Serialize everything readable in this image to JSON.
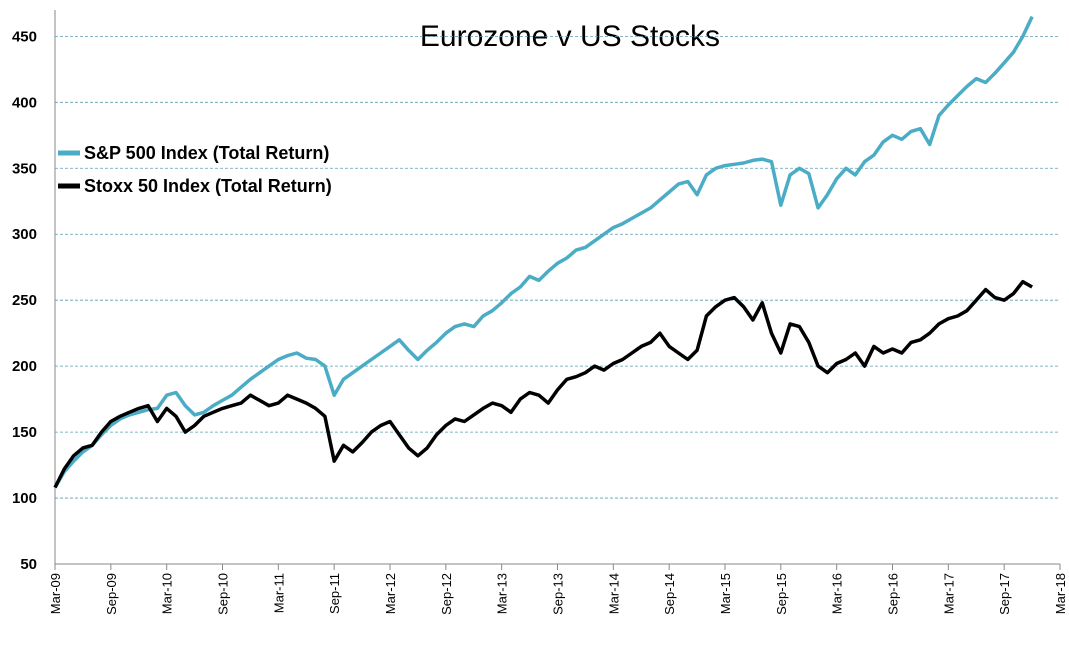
{
  "chart_data": {
    "type": "line",
    "title": "Eurozone v US Stocks",
    "xlabel": "",
    "ylabel": "",
    "ylim": [
      50,
      470
    ],
    "yticks": [
      50,
      100,
      150,
      200,
      250,
      300,
      350,
      400,
      450
    ],
    "x_tick_labels": [
      "Mar-09",
      "Sep-09",
      "Mar-10",
      "Sep-10",
      "Mar-11",
      "Sep-11",
      "Mar-12",
      "Sep-12",
      "Mar-13",
      "Sep-13",
      "Mar-14",
      "Sep-14",
      "Mar-15",
      "Sep-15",
      "Mar-16",
      "Sep-16",
      "Mar-17",
      "Sep-17",
      "Mar-18"
    ],
    "x_unit": "months since Mar-09",
    "xlim": [
      0,
      108
    ],
    "grid": true,
    "legend_position": "top-left",
    "series": [
      {
        "name": "S&P 500 Index (Total Return)",
        "color": "#4bacc6",
        "x": [
          0,
          1,
          2,
          3,
          4,
          5,
          6,
          7,
          8,
          9,
          10,
          11,
          12,
          13,
          14,
          15,
          16,
          17,
          18,
          19,
          20,
          21,
          22,
          23,
          24,
          25,
          26,
          27,
          28,
          29,
          30,
          31,
          32,
          33,
          34,
          35,
          36,
          37,
          38,
          39,
          40,
          41,
          42,
          43,
          44,
          45,
          46,
          47,
          48,
          49,
          50,
          51,
          52,
          53,
          54,
          55,
          56,
          57,
          58,
          59,
          60,
          61,
          62,
          63,
          64,
          65,
          66,
          67,
          68,
          69,
          70,
          71,
          72,
          73,
          74,
          75,
          76,
          77,
          78,
          79,
          80,
          81,
          82,
          83,
          84,
          85,
          86,
          87,
          88,
          89,
          90,
          91,
          92,
          93,
          94,
          95,
          96,
          97,
          98,
          99,
          100,
          101,
          102,
          103,
          104,
          105
        ],
        "values": [
          108,
          120,
          128,
          135,
          140,
          148,
          155,
          160,
          163,
          165,
          167,
          168,
          178,
          180,
          170,
          163,
          165,
          170,
          174,
          178,
          184,
          190,
          195,
          200,
          205,
          208,
          210,
          206,
          205,
          200,
          178,
          190,
          195,
          200,
          205,
          210,
          215,
          220,
          212,
          205,
          212,
          218,
          225,
          230,
          232,
          230,
          238,
          242,
          248,
          255,
          260,
          268,
          265,
          272,
          278,
          282,
          288,
          290,
          295,
          300,
          305,
          308,
          312,
          316,
          320,
          326,
          332,
          338,
          340,
          330,
          345,
          350,
          352,
          353,
          354,
          356,
          357,
          355,
          322,
          345,
          350,
          346,
          320,
          330,
          342,
          350,
          345,
          355,
          360,
          370,
          375,
          372,
          378,
          380,
          368,
          390,
          398,
          405,
          412,
          418,
          415,
          422,
          430,
          438,
          450,
          465
        ]
      },
      {
        "name": "Stoxx 50 Index (Total Return)",
        "color": "#000000",
        "x": [
          0,
          1,
          2,
          3,
          4,
          5,
          6,
          7,
          8,
          9,
          10,
          11,
          12,
          13,
          14,
          15,
          16,
          17,
          18,
          19,
          20,
          21,
          22,
          23,
          24,
          25,
          26,
          27,
          28,
          29,
          30,
          31,
          32,
          33,
          34,
          35,
          36,
          37,
          38,
          39,
          40,
          41,
          42,
          43,
          44,
          45,
          46,
          47,
          48,
          49,
          50,
          51,
          52,
          53,
          54,
          55,
          56,
          57,
          58,
          59,
          60,
          61,
          62,
          63,
          64,
          65,
          66,
          67,
          68,
          69,
          70,
          71,
          72,
          73,
          74,
          75,
          76,
          77,
          78,
          79,
          80,
          81,
          82,
          83,
          84,
          85,
          86,
          87,
          88,
          89,
          90,
          91,
          92,
          93,
          94,
          95,
          96,
          97,
          98,
          99,
          100,
          101,
          102,
          103,
          104,
          105
        ],
        "values": [
          108,
          122,
          132,
          138,
          140,
          150,
          158,
          162,
          165,
          168,
          170,
          158,
          168,
          162,
          150,
          155,
          162,
          165,
          168,
          170,
          172,
          178,
          174,
          170,
          172,
          178,
          175,
          172,
          168,
          162,
          128,
          140,
          135,
          142,
          150,
          155,
          158,
          148,
          138,
          132,
          138,
          148,
          155,
          160,
          158,
          163,
          168,
          172,
          170,
          165,
          175,
          180,
          178,
          172,
          182,
          190,
          192,
          195,
          200,
          197,
          202,
          205,
          210,
          215,
          218,
          225,
          215,
          210,
          205,
          212,
          238,
          245,
          250,
          252,
          245,
          235,
          248,
          225,
          210,
          232,
          230,
          218,
          200,
          195,
          202,
          205,
          210,
          200,
          215,
          210,
          213,
          210,
          218,
          220,
          225,
          232,
          236,
          238,
          242,
          250,
          258,
          252,
          250,
          255,
          264,
          260
        ]
      }
    ]
  }
}
